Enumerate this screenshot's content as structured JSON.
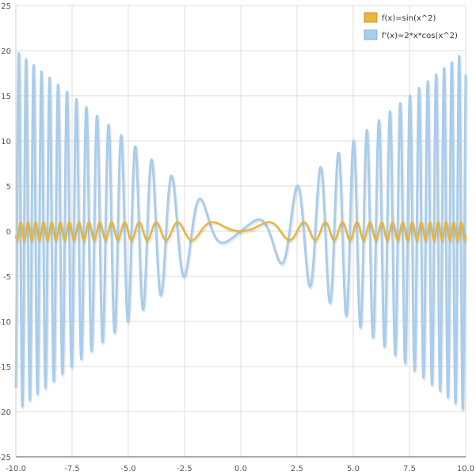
{
  "chart_data": {
    "type": "line",
    "xlim": [
      -10,
      10
    ],
    "ylim": [
      -25,
      25
    ],
    "x_ticks": [
      "-10.0",
      "-7.5",
      "-5.0",
      "-2.5",
      "0.0",
      "2.5",
      "5.0",
      "7.5",
      "10.0"
    ],
    "x_tick_values": [
      -10,
      -7.5,
      -5,
      -2.5,
      0,
      2.5,
      5,
      7.5,
      10
    ],
    "y_ticks": [
      "25",
      "20",
      "15",
      "10",
      "5",
      "0",
      "-5",
      "-10",
      "-15",
      "-20",
      "-25"
    ],
    "y_tick_values": [
      25,
      20,
      15,
      10,
      5,
      0,
      -5,
      -10,
      -15,
      -20,
      -25
    ],
    "grid": true,
    "legend_position": "top-right",
    "series": [
      {
        "name": "f(x)=sin(x^2)",
        "formula": "sin(x^2)",
        "color": "#e8b63a"
      },
      {
        "name": "f'(x)=2*x*cos(x^2)",
        "formula": "2*x*cos(x^2)",
        "color": "#a9cdeb"
      }
    ]
  }
}
